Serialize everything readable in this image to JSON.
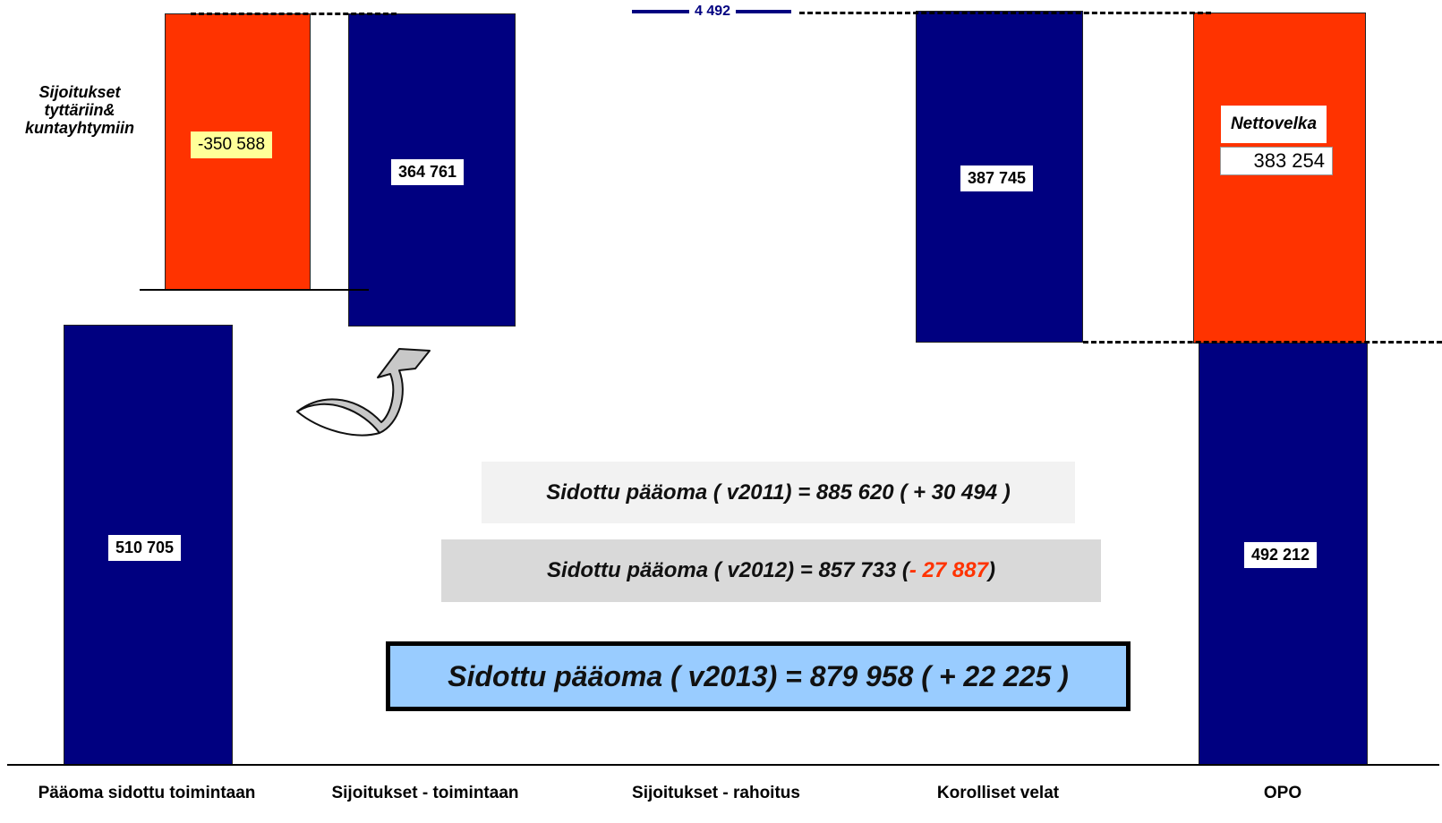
{
  "bars": {
    "paaoma": {
      "value_label": "510 705",
      "color": "#000080"
    },
    "sijoitukset_tytar": {
      "value_label": "-350 588",
      "color": "#ff3300"
    },
    "sijoitukset_toim": {
      "value_label": "364 761",
      "color": "#000080"
    },
    "rahoitus_small": {
      "value_label": "4 492",
      "color": "#000080"
    },
    "korolliset": {
      "value_label": "387 745",
      "color": "#000080"
    },
    "nettovelka": {
      "title": "Nettovelka",
      "value_label": "383 254",
      "color": "#ff3300"
    },
    "opo": {
      "value_label": "492 212",
      "color": "#000080"
    }
  },
  "side_label": {
    "line1": "Sijoitukset",
    "line2": "tyttäriin&",
    "line3": "kuntayhtymiin"
  },
  "banners": {
    "v2011": {
      "text": "Sidottu pääoma  ( v2011) = 885 620 ( + 30 494 )"
    },
    "v2012": {
      "prefix": "Sidottu pääoma  ( v2012) = 857 733 ( ",
      "delta": "- 27 887",
      "suffix": " )"
    },
    "v2013": {
      "text": "Sidottu pääoma  ( v2013) = 879 958 ( + 22 225 )"
    }
  },
  "categories": [
    "Pääoma sidottu toimintaan",
    "Sijoitukset - toimintaan",
    "Sijoitukset - rahoitus",
    "Korolliset velat",
    "OPO"
  ]
}
